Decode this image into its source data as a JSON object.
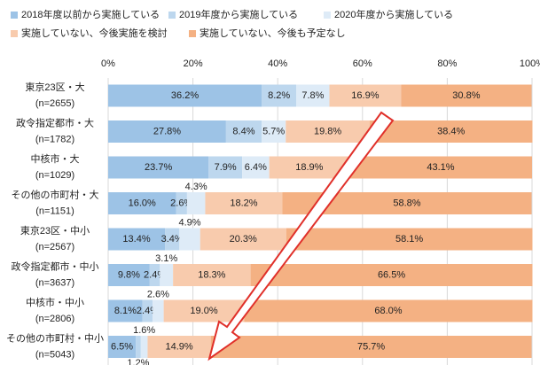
{
  "chart_data": {
    "type": "stacked_barh",
    "categories": [
      [
        "東京23区・大",
        "(n=2655)"
      ],
      [
        "政令指定都市・大",
        "(n=1782)"
      ],
      [
        "中核市・大",
        "(n=1029)"
      ],
      [
        "その他の市町村・大",
        "(n=1151)"
      ],
      [
        "東京23区・中小",
        "(n=2567)"
      ],
      [
        "政令指定都市・中小",
        "(n=3637)"
      ],
      [
        "中核市・中小",
        "(n=2806)"
      ],
      [
        "その他の市町村・中小",
        "(n=5043)"
      ]
    ],
    "series": [
      {
        "name": "2018年度以前から実施している",
        "color": "#9dc3e6",
        "values": [
          36.2,
          27.8,
          23.7,
          16.0,
          13.4,
          9.8,
          8.1,
          6.5
        ],
        "value_labels": [
          "36.2%",
          "27.8%",
          "23.7%",
          "16.0%",
          "13.4%",
          "9.8%",
          "8.1%",
          "6.5%"
        ]
      },
      {
        "name": "2019年度から実施している",
        "color": "#bdd7ee",
        "values": [
          8.2,
          8.4,
          7.9,
          2.6,
          3.4,
          2.4,
          2.4,
          1.2
        ],
        "value_labels": [
          "8.2%",
          "8.4%",
          "7.9%",
          "2.6%",
          "3.4%",
          "2.4%",
          "2.4%",
          "1.2%"
        ]
      },
      {
        "name": "2020年度から実施している",
        "color": "#deebf7",
        "values": [
          7.8,
          5.7,
          6.4,
          4.3,
          4.9,
          3.1,
          2.6,
          1.6
        ],
        "value_labels": [
          "7.8%",
          "5.7%",
          "6.4%",
          "4.3%",
          "4.9%",
          "3.1%",
          "2.6%",
          "1.6%"
        ]
      },
      {
        "name": "実施していない、今後実施を検討",
        "color": "#f8cbad",
        "values": [
          16.9,
          19.8,
          18.9,
          18.2,
          20.3,
          18.3,
          19.0,
          14.9
        ],
        "value_labels": [
          "16.9%",
          "19.8%",
          "18.9%",
          "18.2%",
          "20.3%",
          "18.3%",
          "19.0%",
          "14.9%"
        ]
      },
      {
        "name": "実施していない、今後も予定なし",
        "color": "#f4b183",
        "values": [
          30.8,
          38.4,
          43.1,
          58.8,
          58.1,
          66.5,
          68.0,
          75.7
        ],
        "value_labels": [
          "30.8%",
          "38.4%",
          "43.1%",
          "58.8%",
          "58.1%",
          "66.5%",
          "68.0%",
          "75.7%"
        ]
      }
    ],
    "xlim": [
      0,
      100
    ],
    "xticks": [
      {
        "value": 0,
        "label": "0%"
      },
      {
        "value": 20,
        "label": "20%"
      },
      {
        "value": 40,
        "label": "40%"
      },
      {
        "value": 60,
        "label": "60%"
      },
      {
        "value": 80,
        "label": "80%"
      },
      {
        "value": 100,
        "label": "100%"
      }
    ],
    "grid": true
  }
}
